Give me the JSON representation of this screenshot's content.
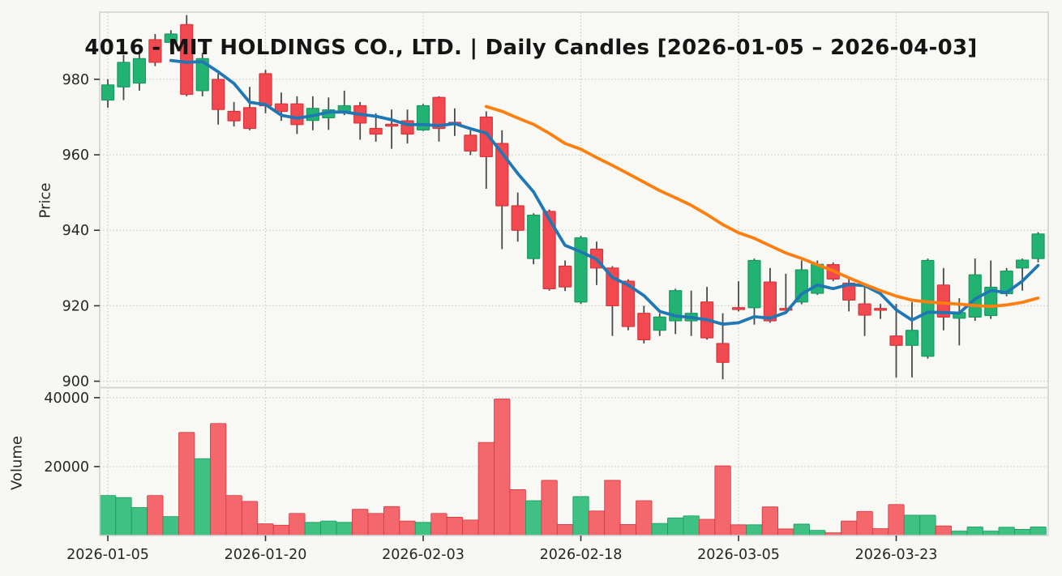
{
  "colors": {
    "background": "#f7f7f4",
    "panel_background": "#f8f8f5",
    "grid": "#c9c9c9",
    "spine": "#d2d2d2",
    "text": "#262626",
    "title_text": "#151515",
    "up": "#22b373",
    "up_edge": "#179a5f",
    "down": "#f1494f",
    "down_edge": "#d7353c",
    "wick": "#4a4a4a",
    "volume_up": "#3fc183",
    "volume_down": "#f4686d",
    "ma_fast": "#1f77b4",
    "ma_slow": "#ff7f0e"
  },
  "chart_data": {
    "type": "candlestick",
    "title": "4016 - MIT HOLDINGS CO., LTD. | Daily Candles [2026-01-05 – 2026-04-03]",
    "ylabel": "Price",
    "ylabel_volume": "Volume",
    "legend": "none",
    "grid": true,
    "price_ticks": [
      980,
      960,
      940,
      920,
      900
    ],
    "volume_ticks": [
      40000,
      20000
    ],
    "x_tick_labels": [
      "2026-01-05",
      "2026-01-20",
      "2026-02-03",
      "2026-02-18",
      "2026-03-05",
      "2026-03-23"
    ],
    "x_tick_indices": [
      0,
      10,
      20,
      30,
      40,
      50
    ],
    "ylim_price": [
      898.3,
      997.8
    ],
    "ylim_volume": [
      0,
      42900
    ],
    "overlays": [
      {
        "name": "MA-5",
        "window": 5,
        "color_key": "ma_fast"
      },
      {
        "name": "MA-25",
        "window": 25,
        "color_key": "ma_slow"
      }
    ],
    "dates": [
      "2026-01-05",
      "2026-01-06",
      "2026-01-07",
      "2026-01-08",
      "2026-01-09",
      "2026-01-13",
      "2026-01-14",
      "2026-01-15",
      "2026-01-16",
      "2026-01-19",
      "2026-01-20",
      "2026-01-21",
      "2026-01-22",
      "2026-01-23",
      "2026-01-26",
      "2026-01-27",
      "2026-01-28",
      "2026-01-29",
      "2026-01-30",
      "2026-02-02",
      "2026-02-03",
      "2026-02-04",
      "2026-02-05",
      "2026-02-06",
      "2026-02-09",
      "2026-02-10",
      "2026-02-12",
      "2026-02-13",
      "2026-02-16",
      "2026-02-17",
      "2026-02-18",
      "2026-02-19",
      "2026-02-20",
      "2026-02-24",
      "2026-02-25",
      "2026-02-26",
      "2026-02-27",
      "2026-03-02",
      "2026-03-03",
      "2026-03-04",
      "2026-03-05",
      "2026-03-06",
      "2026-03-09",
      "2026-03-10",
      "2026-03-11",
      "2026-03-12",
      "2026-03-13",
      "2026-03-16",
      "2026-03-17",
      "2026-03-19",
      "2026-03-23",
      "2026-03-24",
      "2026-03-25",
      "2026-03-26",
      "2026-03-27",
      "2026-03-30",
      "2026-03-31",
      "2026-04-01",
      "2026-04-02",
      "2026-04-03"
    ],
    "open": [
      974.5,
      978,
      979,
      990.5,
      989.8,
      994.5,
      977,
      980,
      971.5,
      972.5,
      981.5,
      973.5,
      973.5,
      969.1,
      969.8,
      971.5,
      973,
      967,
      968.1,
      969,
      966.6,
      975.2,
      968.6,
      965.2,
      970,
      963,
      946.5,
      932.5,
      945,
      930.5,
      921,
      935,
      930,
      926.5,
      918,
      913.5,
      916,
      916,
      921,
      910,
      919.5,
      919.5,
      926.3,
      919.3,
      921,
      923.3,
      930.9,
      926,
      920.5,
      919.3,
      912,
      909.5,
      906.6,
      925.5,
      916.7,
      917,
      917.4,
      923.2,
      930,
      932.5
    ],
    "high": [
      980,
      986.5,
      987,
      992,
      993,
      997,
      987,
      981.5,
      974,
      978,
      982.5,
      976.5,
      975.5,
      975.5,
      975.2,
      977,
      974,
      971,
      972,
      972,
      973.5,
      975.5,
      972.3,
      966.5,
      971.5,
      966.5,
      950,
      944.5,
      945.5,
      932,
      938.5,
      937,
      930.5,
      927,
      920,
      918,
      924.5,
      924,
      925,
      918,
      926.5,
      932.5,
      930,
      928.5,
      932,
      932,
      931.5,
      927,
      925,
      920.5,
      920.5,
      921,
      932.5,
      930,
      922,
      932.5,
      932,
      930,
      932.5,
      939.5
    ],
    "low": [
      972.5,
      974.5,
      977,
      983.5,
      987.5,
      975.5,
      975.5,
      968,
      967.5,
      966.5,
      971,
      969,
      965.5,
      966.5,
      966.6,
      970.5,
      964,
      963.5,
      961.6,
      963,
      966.3,
      963.5,
      965,
      959.9,
      951,
      935,
      937,
      931,
      924,
      923.9,
      920.5,
      925.5,
      912,
      913.5,
      910,
      912,
      912.5,
      912,
      911,
      900.5,
      918.5,
      915,
      915.5,
      919,
      920.4,
      922.9,
      926.5,
      918.5,
      912,
      916.5,
      901,
      901,
      906,
      913.5,
      909.5,
      916,
      916.5,
      922.5,
      924,
      931.5
    ],
    "close": [
      978.5,
      984.5,
      985.5,
      984.5,
      992,
      976,
      985.5,
      972,
      969,
      967,
      973,
      971.5,
      968,
      972.3,
      971.9,
      973,
      968.4,
      965.5,
      967.6,
      965.5,
      973,
      967,
      968.2,
      961,
      959.5,
      946.5,
      940,
      944,
      924.5,
      925,
      938,
      930,
      920,
      914.5,
      911,
      917,
      924,
      918,
      911.5,
      905,
      919,
      932,
      916,
      919.1,
      929.5,
      931,
      927.1,
      921.5,
      917.5,
      919,
      909.5,
      913.5,
      932,
      917,
      918.2,
      928.2,
      924.9,
      929.2,
      932.1,
      939
    ],
    "volume": [
      11600,
      11000,
      8100,
      11600,
      5500,
      29900,
      22300,
      32500,
      11600,
      9900,
      3400,
      3000,
      6400,
      3800,
      4200,
      3800,
      7600,
      6400,
      8400,
      4200,
      3800,
      6400,
      5300,
      4500,
      27000,
      39600,
      13300,
      10100,
      16000,
      3200,
      11300,
      7100,
      16000,
      3200,
      10100,
      3500,
      5100,
      5700,
      4700,
      20200,
      3100,
      3100,
      8300,
      1900,
      3300,
      1500,
      800,
      4200,
      7000,
      2000,
      9000,
      5900,
      5900,
      2800,
      1300,
      2500,
      1300,
      2400,
      1800,
      2500
    ]
  }
}
